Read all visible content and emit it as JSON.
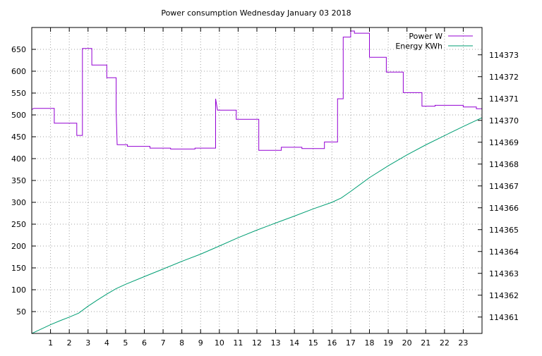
{
  "colors": {
    "power": "#9400d3",
    "energy": "#009e73",
    "grid": "#a0a0a0",
    "frame": "#000000"
  },
  "chart_data": {
    "type": "line",
    "title": "Power consumption Wednesday January 03 2018",
    "xlabel": "",
    "ylabel": "",
    "y2label": "",
    "grid": true,
    "legend_position": "top-right",
    "xlim": [
      0,
      24
    ],
    "ylim": [
      0,
      700
    ],
    "y2lim": [
      114360.25,
      114374.25
    ],
    "x_ticks": [
      1,
      2,
      3,
      4,
      5,
      6,
      7,
      8,
      9,
      10,
      11,
      12,
      13,
      14,
      15,
      16,
      17,
      18,
      19,
      20,
      21,
      22,
      23
    ],
    "y_ticks": [
      50,
      100,
      150,
      200,
      250,
      300,
      350,
      400,
      450,
      500,
      550,
      600,
      650
    ],
    "y2_ticks": [
      114361,
      114362,
      114363,
      114364,
      114365,
      114366,
      114367,
      114368,
      114369,
      114370,
      114371,
      114372,
      114373
    ],
    "series": [
      {
        "name": "Power W",
        "axis": "y1",
        "step": true,
        "points": [
          [
            0.0,
            512
          ],
          [
            0.1,
            515
          ],
          [
            1.2,
            515
          ],
          [
            1.2,
            481
          ],
          [
            2.4,
            481
          ],
          [
            2.4,
            453
          ],
          [
            2.7,
            453
          ],
          [
            2.7,
            652
          ],
          [
            3.2,
            652
          ],
          [
            3.2,
            614
          ],
          [
            4.0,
            614
          ],
          [
            4.0,
            585
          ],
          [
            4.5,
            585
          ],
          [
            4.5,
            510
          ],
          [
            4.55,
            432
          ],
          [
            5.1,
            432
          ],
          [
            5.1,
            428
          ],
          [
            6.3,
            428
          ],
          [
            6.3,
            424
          ],
          [
            7.4,
            424
          ],
          [
            7.4,
            422
          ],
          [
            8.7,
            422
          ],
          [
            8.7,
            424
          ],
          [
            9.8,
            424
          ],
          [
            9.8,
            537
          ],
          [
            9.9,
            511
          ],
          [
            10.9,
            511
          ],
          [
            10.9,
            490
          ],
          [
            12.1,
            490
          ],
          [
            12.1,
            419
          ],
          [
            13.3,
            419
          ],
          [
            13.3,
            426
          ],
          [
            14.4,
            426
          ],
          [
            14.4,
            423
          ],
          [
            15.6,
            423
          ],
          [
            15.6,
            438
          ],
          [
            16.3,
            438
          ],
          [
            16.3,
            537
          ],
          [
            16.6,
            537
          ],
          [
            16.6,
            678
          ],
          [
            17.0,
            678
          ],
          [
            17.0,
            692
          ],
          [
            17.2,
            692
          ],
          [
            17.2,
            687
          ],
          [
            18.0,
            687
          ],
          [
            18.0,
            632
          ],
          [
            18.9,
            632
          ],
          [
            18.9,
            598
          ],
          [
            19.8,
            598
          ],
          [
            19.8,
            551
          ],
          [
            20.8,
            551
          ],
          [
            20.8,
            520
          ],
          [
            21.5,
            520
          ],
          [
            21.5,
            522
          ],
          [
            23.0,
            522
          ],
          [
            23.0,
            518
          ],
          [
            23.7,
            518
          ],
          [
            23.7,
            514
          ],
          [
            24.0,
            514
          ]
        ]
      },
      {
        "name": "Energy KWh",
        "axis": "y2",
        "step": false,
        "points": [
          [
            0.0,
            114360.25
          ],
          [
            0.5,
            114360.45
          ],
          [
            1.0,
            114360.65
          ],
          [
            1.5,
            114360.83
          ],
          [
            2.0,
            114361.0
          ],
          [
            2.5,
            114361.18
          ],
          [
            3.0,
            114361.5
          ],
          [
            3.5,
            114361.78
          ],
          [
            4.0,
            114362.05
          ],
          [
            4.5,
            114362.3
          ],
          [
            5.0,
            114362.5
          ],
          [
            6.0,
            114362.85
          ],
          [
            7.0,
            114363.2
          ],
          [
            8.0,
            114363.55
          ],
          [
            9.0,
            114363.88
          ],
          [
            10.0,
            114364.25
          ],
          [
            11.0,
            114364.63
          ],
          [
            12.0,
            114364.98
          ],
          [
            13.0,
            114365.3
          ],
          [
            14.0,
            114365.62
          ],
          [
            15.0,
            114365.95
          ],
          [
            16.0,
            114366.25
          ],
          [
            16.5,
            114366.45
          ],
          [
            17.0,
            114366.75
          ],
          [
            18.0,
            114367.38
          ],
          [
            19.0,
            114367.92
          ],
          [
            20.0,
            114368.42
          ],
          [
            21.0,
            114368.88
          ],
          [
            22.0,
            114369.3
          ],
          [
            23.0,
            114369.72
          ],
          [
            24.0,
            114370.12
          ]
        ]
      }
    ]
  }
}
